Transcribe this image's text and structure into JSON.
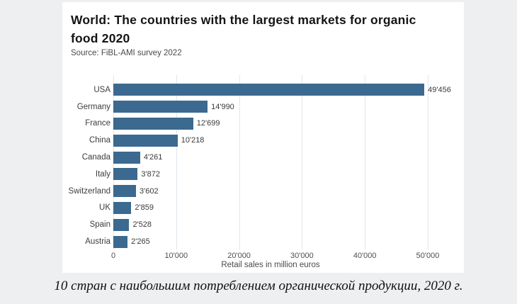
{
  "panel": {
    "title": "World: The countries with the largest markets for organic food 2020",
    "source": "Source: FiBL-AMI survey 2022"
  },
  "chart_data": {
    "type": "bar",
    "orientation": "horizontal",
    "title": "World: The countries with the largest markets for organic food 2020",
    "subtitle": "Source: FiBL-AMI survey 2022",
    "categories": [
      "USA",
      "Germany",
      "France",
      "China",
      "Canada",
      "Italy",
      "Switzerland",
      "UK",
      "Spain",
      "Austria"
    ],
    "values": [
      49456,
      14990,
      12699,
      10218,
      4261,
      3872,
      3602,
      2859,
      2528,
      2265
    ],
    "value_labels": [
      "49'456",
      "14'990",
      "12'699",
      "10'218",
      "4'261",
      "3'872",
      "3'602",
      "2'859",
      "2'528",
      "2'265"
    ],
    "xlabel": "Retail sales in million euros",
    "ylabel": "",
    "x_ticks": [
      "0",
      "10'000",
      "20'000",
      "30'000",
      "40'000",
      "50'000"
    ],
    "x_tick_values": [
      0,
      10000,
      20000,
      30000,
      40000,
      50000
    ],
    "xlim": [
      0,
      50000
    ],
    "grid": true,
    "legend": "none",
    "bar_color": "#3b698f",
    "gridline_color": "#dfe7ec"
  },
  "caption": "10 стран с наибольшим потреблением органической продукции, 2020 г."
}
